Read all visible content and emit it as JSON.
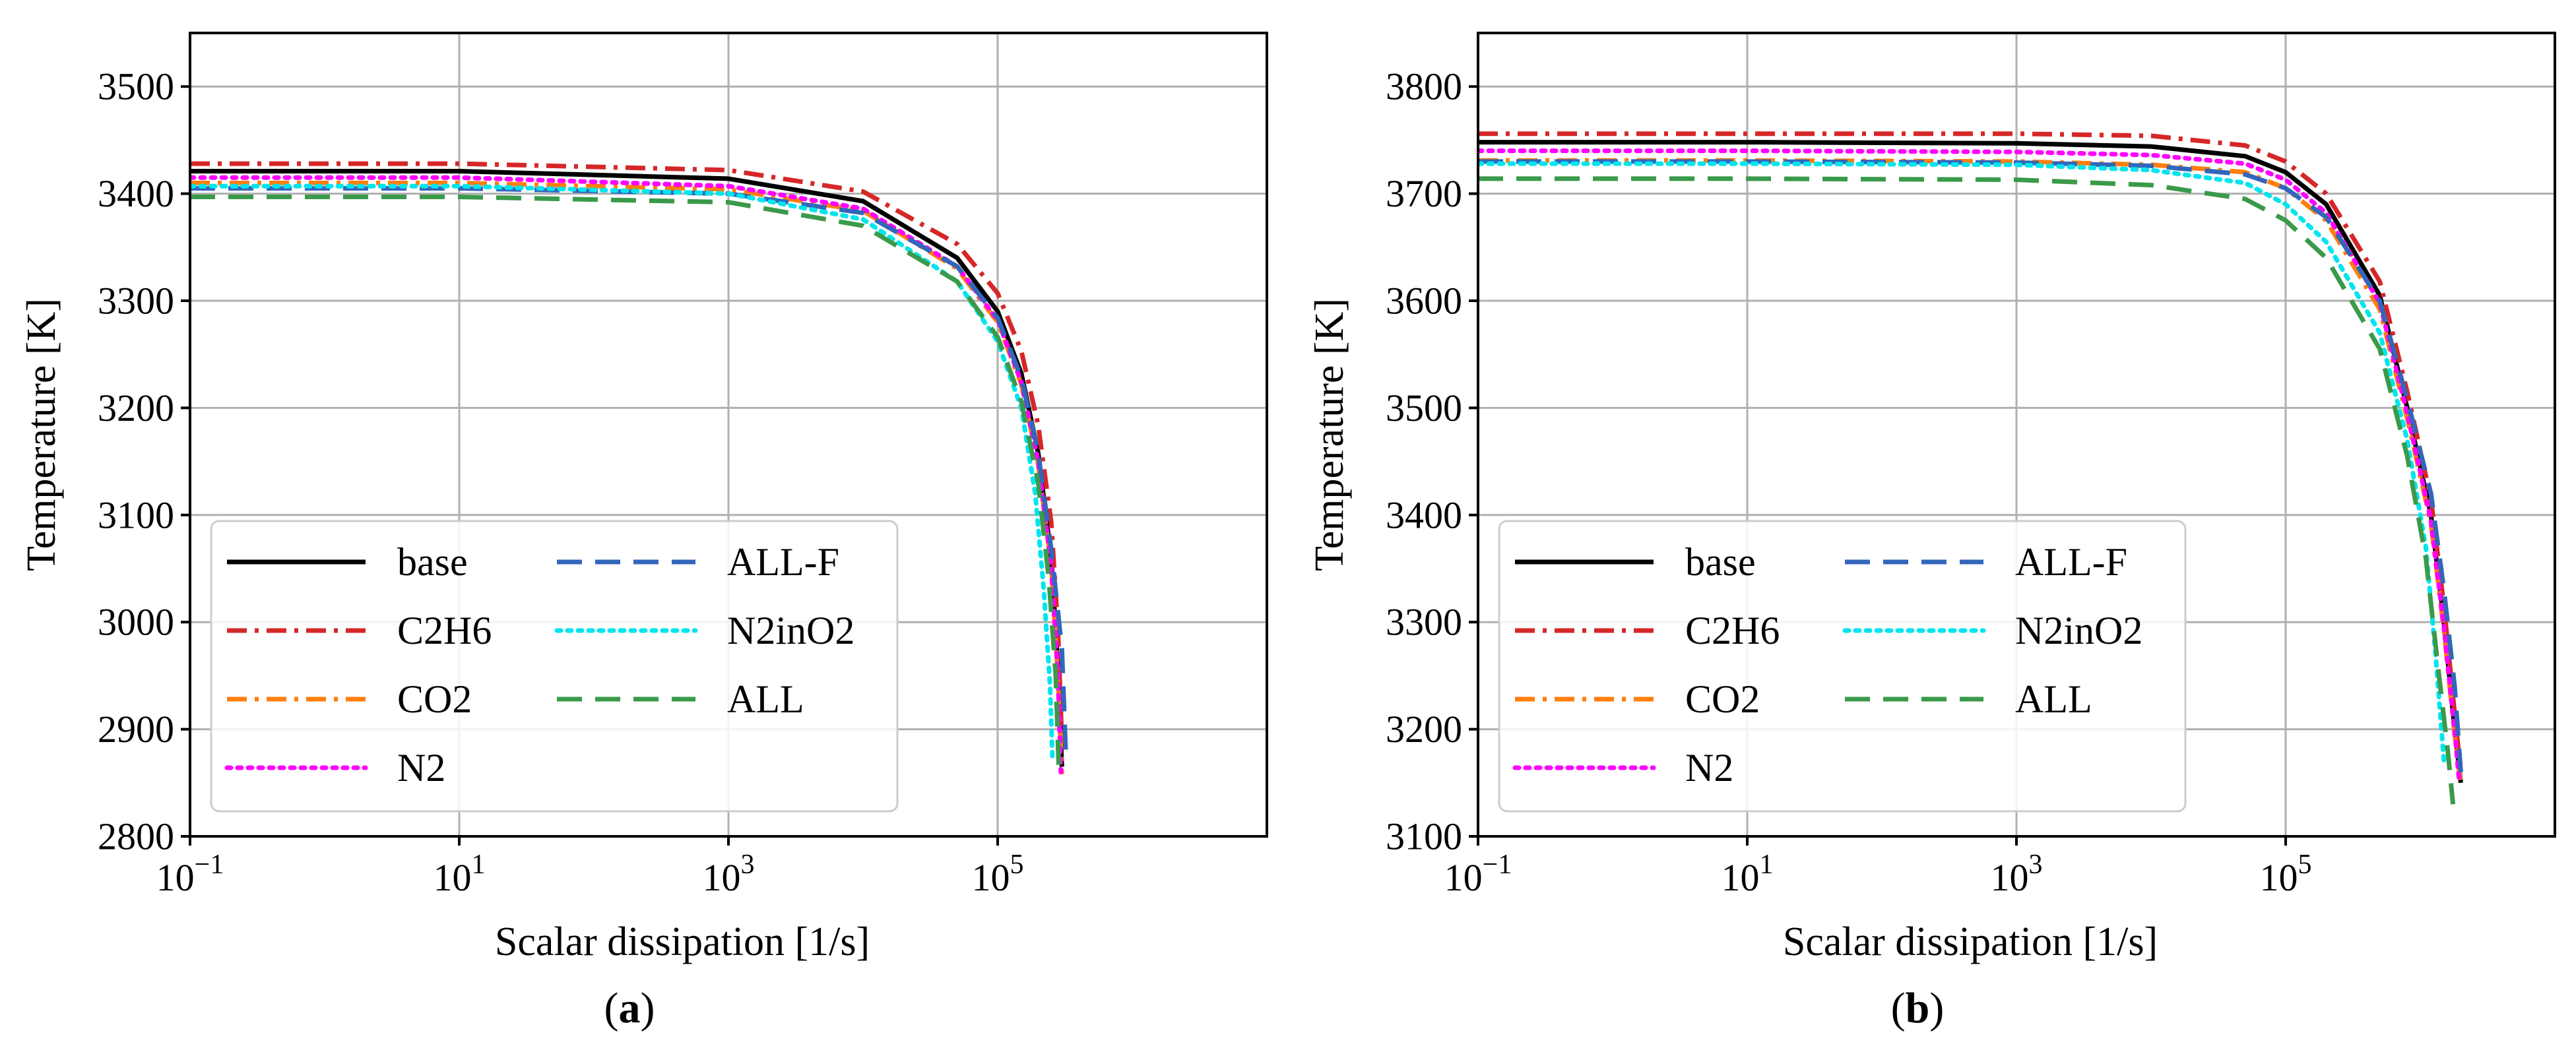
{
  "chart_data": [
    {
      "type": "line",
      "panel": "(a)",
      "caption_letter": "a",
      "xlabel": "Scalar dissipation [1/s]",
      "ylabel": "Temperature [K]",
      "xscale": "log",
      "xlim": [
        0.1,
        10000000
      ],
      "ylim": [
        2800,
        3550
      ],
      "xticks": [
        0.1,
        10,
        1000,
        100000
      ],
      "xtick_labels": [
        {
          "base": "10",
          "exp": "−1"
        },
        {
          "base": "10",
          "exp": "1"
        },
        {
          "base": "10",
          "exp": "3"
        },
        {
          "base": "10",
          "exp": "5"
        }
      ],
      "yticks": [
        2800,
        2900,
        3000,
        3100,
        3200,
        3300,
        3400,
        3500
      ],
      "ytick_labels": [
        "2800",
        "2900",
        "3000",
        "3100",
        "3200",
        "3300",
        "3400",
        "3500"
      ],
      "grid": true,
      "legend_position": "lower-left",
      "legend_columns": 2,
      "series": [
        {
          "name": "base",
          "color": "#000000",
          "style": "solid",
          "points": [
            [
              0.1,
              3421
            ],
            [
              10,
              3421
            ],
            [
              1000,
              3414
            ],
            [
              10000,
              3393
            ],
            [
              50000,
              3340
            ],
            [
              100000,
              3290
            ],
            [
              150000,
              3232
            ],
            [
              200000,
              3158
            ],
            [
              250000,
              3060
            ],
            [
              280000,
              2960
            ],
            [
              300000,
              2865
            ]
          ]
        },
        {
          "name": "C2H6",
          "color": "#d62728",
          "style": "dashdot",
          "points": [
            [
              0.1,
              3428
            ],
            [
              10,
              3428
            ],
            [
              1000,
              3422
            ],
            [
              10000,
              3402
            ],
            [
              50000,
              3353
            ],
            [
              100000,
              3307
            ],
            [
              150000,
              3253
            ],
            [
              200000,
              3184
            ],
            [
              250000,
              3093
            ],
            [
              280000,
              2995
            ],
            [
              300000,
              2890
            ]
          ]
        },
        {
          "name": "CO2",
          "color": "#ff7f0e",
          "style": "dashdot",
          "points": [
            [
              0.1,
              3410
            ],
            [
              10,
              3410
            ],
            [
              1000,
              3404
            ],
            [
              10000,
              3384
            ],
            [
              50000,
              3330
            ],
            [
              100000,
              3280
            ],
            [
              150000,
              3222
            ],
            [
              200000,
              3148
            ],
            [
              250000,
              3052
            ],
            [
              280000,
              2950
            ],
            [
              300000,
              2858
            ]
          ]
        },
        {
          "name": "N2",
          "color": "#ff00ff",
          "style": "dotted",
          "points": [
            [
              0.1,
              3415
            ],
            [
              10,
              3415
            ],
            [
              1000,
              3407
            ],
            [
              10000,
              3386
            ],
            [
              50000,
              3332
            ],
            [
              100000,
              3282
            ],
            [
              150000,
              3224
            ],
            [
              200000,
              3150
            ],
            [
              250000,
              3052
            ],
            [
              280000,
              2952
            ],
            [
              295000,
              2860
            ]
          ]
        },
        {
          "name": "ALL-F",
          "color": "#3366bb",
          "style": "dashed",
          "points": [
            [
              0.1,
              3405
            ],
            [
              10,
              3405
            ],
            [
              1000,
              3400
            ],
            [
              10000,
              3382
            ],
            [
              50000,
              3332
            ],
            [
              100000,
              3284
            ],
            [
              150000,
              3228
            ],
            [
              200000,
              3158
            ],
            [
              250000,
              3068
            ],
            [
              300000,
              2975
            ],
            [
              320000,
              2880
            ]
          ]
        },
        {
          "name": "N2inO2",
          "color": "#00e5ee",
          "style": "dotted",
          "points": [
            [
              0.1,
              3407
            ],
            [
              10,
              3407
            ],
            [
              1000,
              3400
            ],
            [
              10000,
              3376
            ],
            [
              50000,
              3318
            ],
            [
              100000,
              3262
            ],
            [
              150000,
              3200
            ],
            [
              190000,
              3120
            ],
            [
              220000,
              3030
            ],
            [
              245000,
              2940
            ],
            [
              255000,
              2875
            ]
          ]
        },
        {
          "name": "ALL",
          "color": "#3a9a4a",
          "style": "dashed",
          "points": [
            [
              0.1,
              3397
            ],
            [
              10,
              3397
            ],
            [
              1000,
              3392
            ],
            [
              10000,
              3370
            ],
            [
              50000,
              3318
            ],
            [
              100000,
              3266
            ],
            [
              150000,
              3206
            ],
            [
              200000,
              3130
            ],
            [
              240000,
              3040
            ],
            [
              270000,
              2950
            ],
            [
              285000,
              2860
            ]
          ]
        }
      ]
    },
    {
      "type": "line",
      "panel": "(b)",
      "caption_letter": "b",
      "xlabel": "Scalar dissipation [1/s]",
      "ylabel": "Temperature [K]",
      "xscale": "log",
      "xlim": [
        0.1,
        10000000
      ],
      "ylim": [
        3100,
        3850
      ],
      "xticks": [
        0.1,
        10,
        1000,
        100000
      ],
      "xtick_labels": [
        {
          "base": "10",
          "exp": "−1"
        },
        {
          "base": "10",
          "exp": "1"
        },
        {
          "base": "10",
          "exp": "3"
        },
        {
          "base": "10",
          "exp": "5"
        }
      ],
      "yticks": [
        3100,
        3200,
        3300,
        3400,
        3500,
        3600,
        3700,
        3800
      ],
      "ytick_labels": [
        "3100",
        "3200",
        "3300",
        "3400",
        "3500",
        "3600",
        "3700",
        "3800"
      ],
      "grid": true,
      "legend_position": "lower-left",
      "legend_columns": 2,
      "series": [
        {
          "name": "base",
          "color": "#000000",
          "style": "solid",
          "points": [
            [
              0.1,
              3748
            ],
            [
              10,
              3748
            ],
            [
              1000,
              3747
            ],
            [
              10000,
              3744
            ],
            [
              50000,
              3735
            ],
            [
              100000,
              3720
            ],
            [
              200000,
              3690
            ],
            [
              500000,
              3605
            ],
            [
              800000,
              3500
            ],
            [
              1200000,
              3400
            ],
            [
              1500000,
              3300
            ],
            [
              1800000,
              3200
            ],
            [
              2000000,
              3150
            ]
          ]
        },
        {
          "name": "C2H6",
          "color": "#d62728",
          "style": "dashdot",
          "points": [
            [
              0.1,
              3756
            ],
            [
              10,
              3756
            ],
            [
              1000,
              3756
            ],
            [
              10000,
              3754
            ],
            [
              50000,
              3745
            ],
            [
              100000,
              3730
            ],
            [
              200000,
              3700
            ],
            [
              500000,
              3618
            ],
            [
              800000,
              3515
            ],
            [
              1200000,
              3415
            ],
            [
              1500000,
              3315
            ],
            [
              1800000,
              3215
            ],
            [
              2000000,
              3160
            ]
          ]
        },
        {
          "name": "CO2",
          "color": "#ff7f0e",
          "style": "dashdot",
          "points": [
            [
              0.1,
              3731
            ],
            [
              10,
              3731
            ],
            [
              1000,
              3730
            ],
            [
              10000,
              3727
            ],
            [
              50000,
              3720
            ],
            [
              100000,
              3705
            ],
            [
              200000,
              3675
            ],
            [
              500000,
              3592
            ],
            [
              800000,
              3490
            ],
            [
              1200000,
              3392
            ],
            [
              1500000,
              3292
            ],
            [
              1800000,
              3195
            ],
            [
              2000000,
              3148
            ]
          ]
        },
        {
          "name": "N2",
          "color": "#ff00ff",
          "style": "dotted",
          "points": [
            [
              0.1,
              3740
            ],
            [
              10,
              3740
            ],
            [
              1000,
              3739
            ],
            [
              10000,
              3736
            ],
            [
              50000,
              3728
            ],
            [
              100000,
              3713
            ],
            [
              200000,
              3682
            ],
            [
              500000,
              3598
            ],
            [
              800000,
              3495
            ],
            [
              1200000,
              3395
            ],
            [
              1500000,
              3295
            ],
            [
              1800000,
              3198
            ],
            [
              1950000,
              3150
            ]
          ]
        },
        {
          "name": "ALL-F",
          "color": "#3366bb",
          "style": "dashed",
          "points": [
            [
              0.1,
              3730
            ],
            [
              10,
              3730
            ],
            [
              1000,
              3729
            ],
            [
              10000,
              3726
            ],
            [
              50000,
              3718
            ],
            [
              100000,
              3705
            ],
            [
              200000,
              3678
            ],
            [
              500000,
              3600
            ],
            [
              800000,
              3508
            ],
            [
              1200000,
              3420
            ],
            [
              1500000,
              3330
            ],
            [
              1800000,
              3240
            ],
            [
              2000000,
              3160
            ]
          ]
        },
        {
          "name": "N2inO2",
          "color": "#00e5ee",
          "style": "dotted",
          "points": [
            [
              0.1,
              3728
            ],
            [
              10,
              3728
            ],
            [
              1000,
              3727
            ],
            [
              10000,
              3722
            ],
            [
              50000,
              3710
            ],
            [
              100000,
              3690
            ],
            [
              200000,
              3655
            ],
            [
              500000,
              3570
            ],
            [
              800000,
              3470
            ],
            [
              1100000,
              3370
            ],
            [
              1300000,
              3270
            ],
            [
              1500000,
              3170
            ]
          ]
        },
        {
          "name": "ALL",
          "color": "#3a9a4a",
          "style": "dashed",
          "points": [
            [
              0.1,
              3714
            ],
            [
              10,
              3714
            ],
            [
              1000,
              3713
            ],
            [
              10000,
              3708
            ],
            [
              50000,
              3695
            ],
            [
              100000,
              3675
            ],
            [
              200000,
              3640
            ],
            [
              500000,
              3555
            ],
            [
              800000,
              3455
            ],
            [
              1100000,
              3360
            ],
            [
              1350000,
              3260
            ],
            [
              1600000,
              3180
            ],
            [
              1750000,
              3130
            ]
          ]
        }
      ]
    }
  ]
}
